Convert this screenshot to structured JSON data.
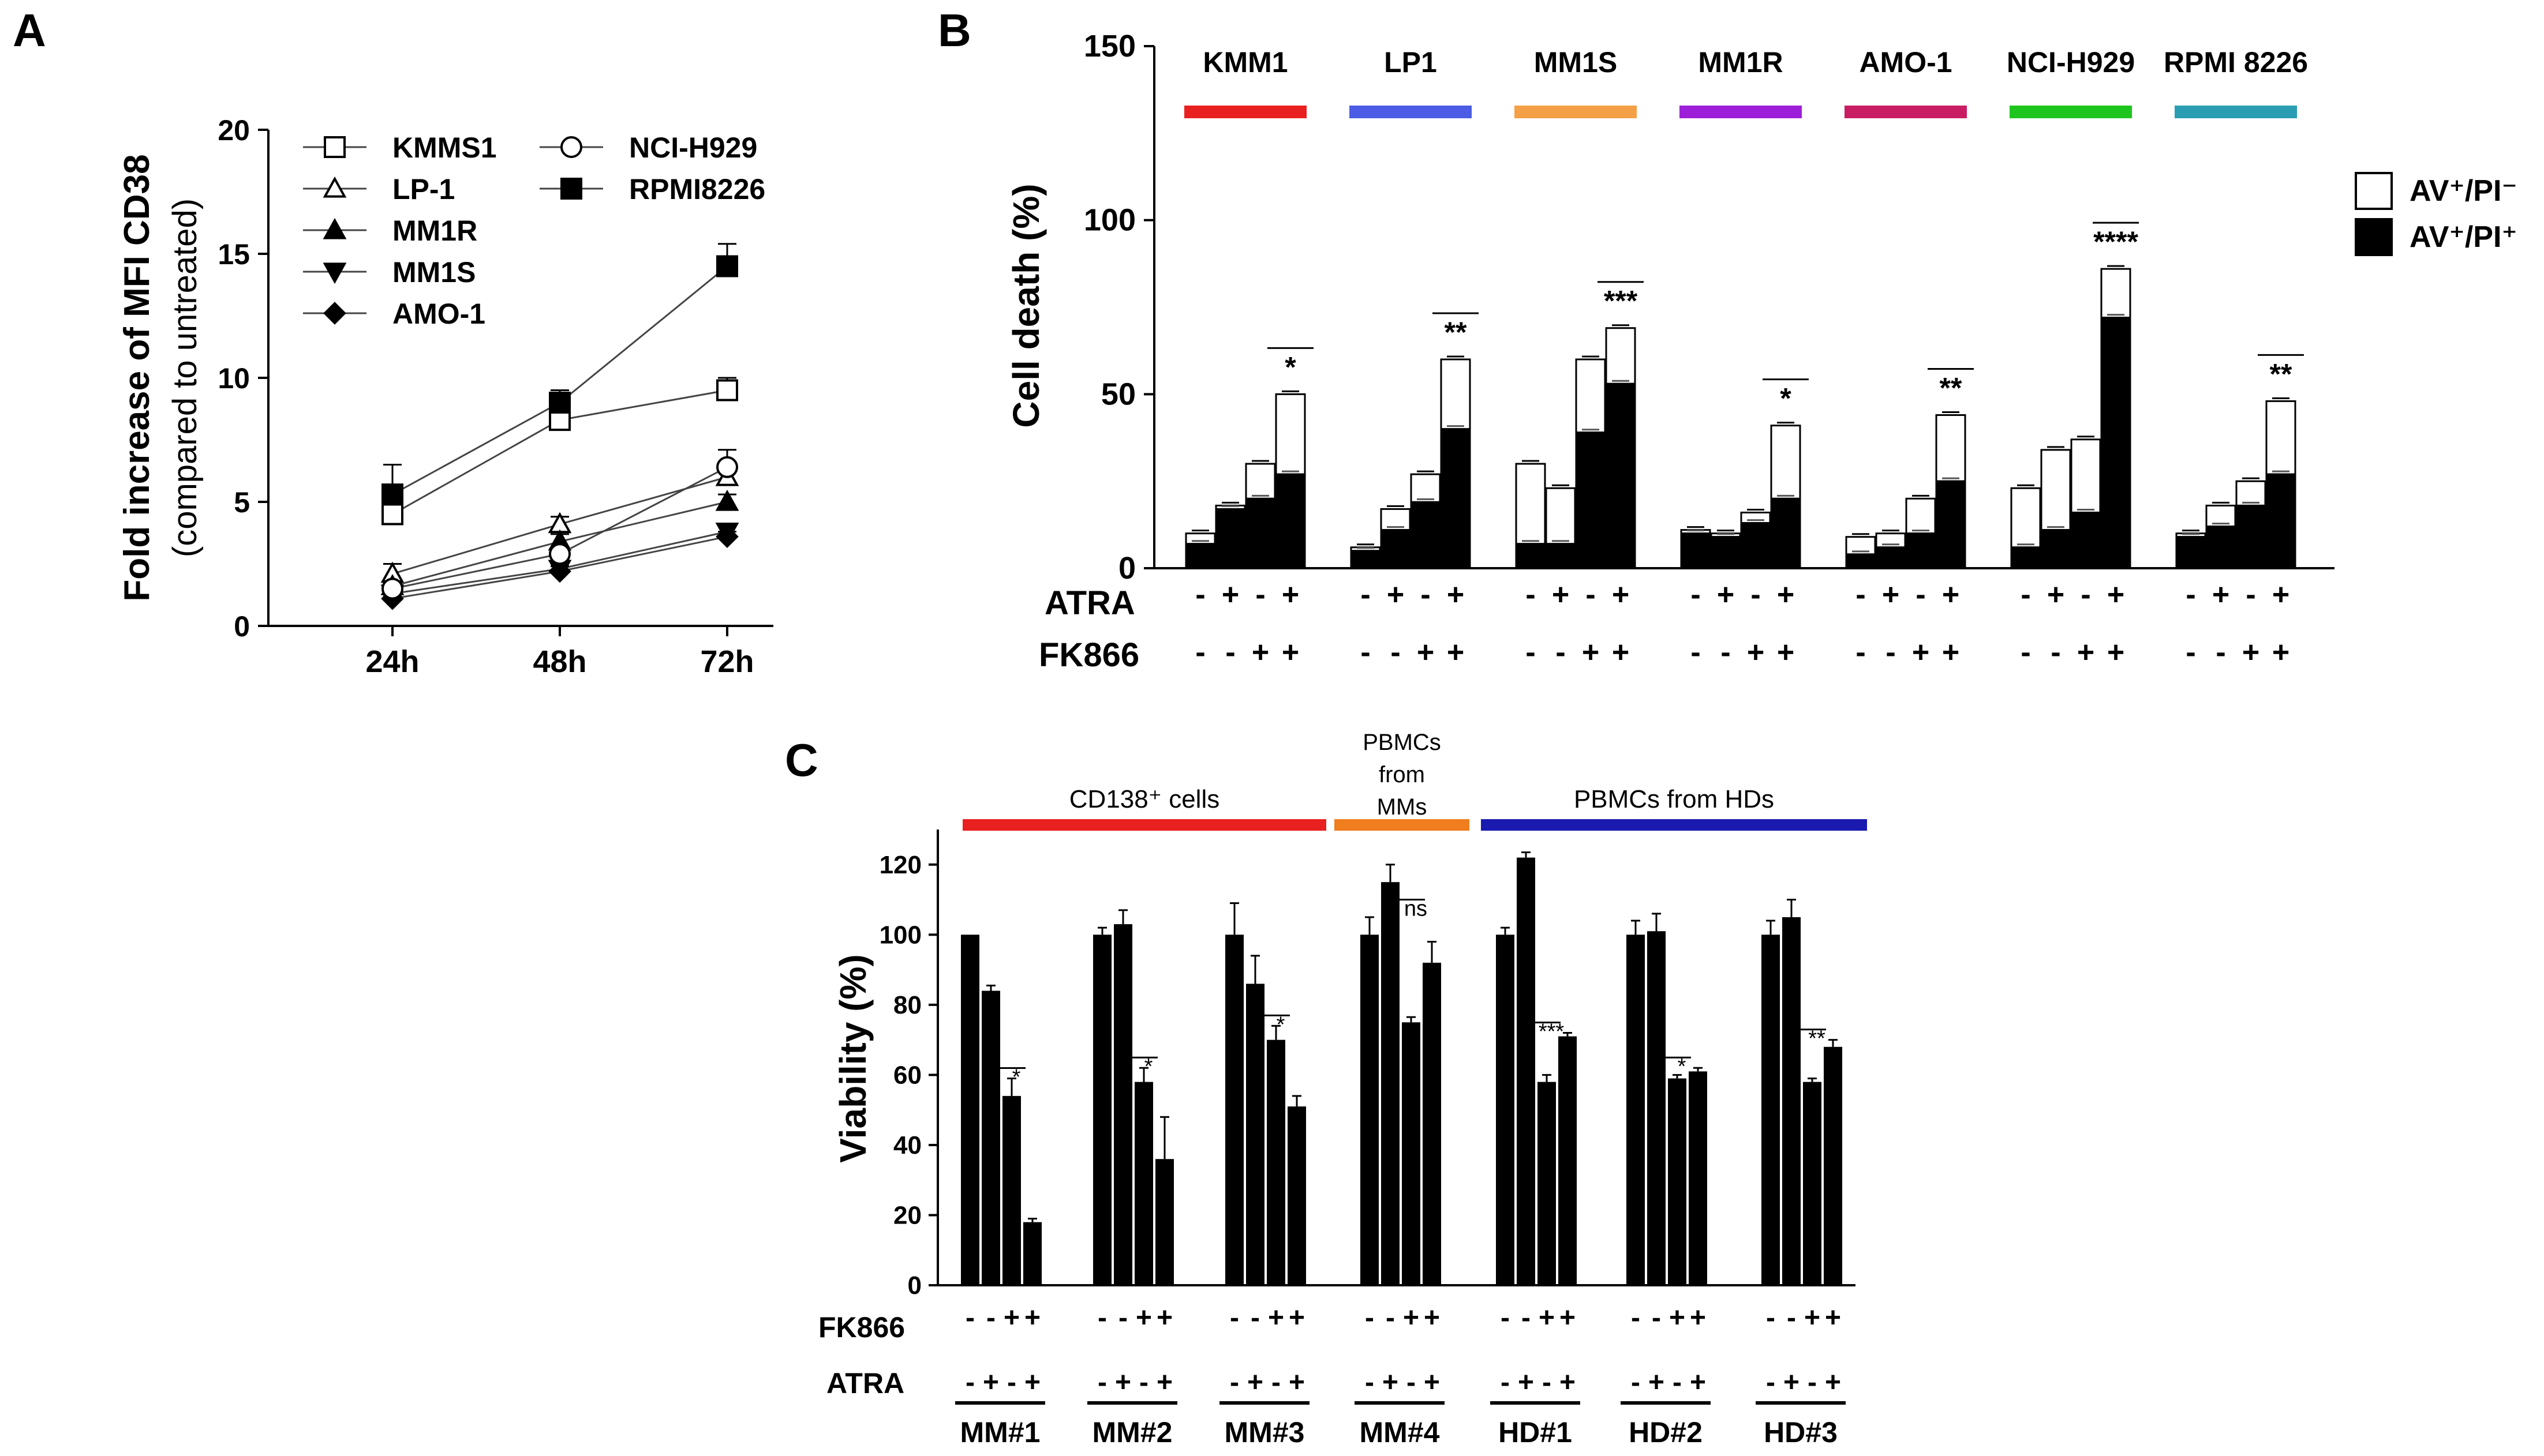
{
  "panels": {
    "a": "A",
    "b": "B",
    "c": "C"
  },
  "chart_data": [
    {
      "id": "A",
      "type": "line",
      "ylabel": "Fold increase of MFI CD38",
      "ylabel2": "(compared to untreated)",
      "xlabel": "",
      "categories": [
        "24h",
        "48h",
        "72h"
      ],
      "ylim": [
        0,
        20
      ],
      "yticks": [
        "0",
        "5",
        "10",
        "15",
        "20"
      ],
      "legend_placement": "top",
      "series": [
        {
          "name": "KMMS1",
          "marker": "square-open",
          "values": [
            4.5,
            8.3,
            9.5
          ],
          "errors": [
            0.5,
            0.4,
            0.5
          ]
        },
        {
          "name": "LP-1",
          "marker": "triangle-open",
          "values": [
            2.1,
            4.1,
            6.0
          ],
          "errors": [
            0.4,
            0.3,
            0.4
          ]
        },
        {
          "name": "MM1R",
          "marker": "triangle-filled",
          "values": [
            1.6,
            3.4,
            5.0
          ],
          "errors": [
            0.2,
            0.3,
            0.3
          ]
        },
        {
          "name": "MM1S",
          "marker": "triangledown-filled",
          "values": [
            1.3,
            2.3,
            3.8
          ],
          "errors": [
            0.2,
            0.2,
            0.2
          ]
        },
        {
          "name": "AMO-1",
          "marker": "diamond-filled",
          "values": [
            1.1,
            2.2,
            3.6
          ],
          "errors": [
            0.1,
            0.2,
            0.2
          ]
        },
        {
          "name": "NCI-H929",
          "marker": "circle-open",
          "values": [
            1.5,
            2.9,
            6.4
          ],
          "errors": [
            0.2,
            0.2,
            0.7
          ]
        },
        {
          "name": "RPMI8226",
          "marker": "square-filled",
          "values": [
            5.3,
            9.0,
            14.5
          ],
          "errors": [
            1.2,
            0.5,
            0.9
          ]
        }
      ]
    },
    {
      "id": "B",
      "type": "bar",
      "stacked": true,
      "ylabel": "Cell death (%)",
      "ylim": [
        0,
        150
      ],
      "yticks": [
        "0",
        "50",
        "100",
        "150"
      ],
      "legend": [
        {
          "label": "AV⁺/PI⁻",
          "fill": "#ffffff"
        },
        {
          "label": "AV⁺/PI⁺",
          "fill": "#000000"
        }
      ],
      "row_labels": {
        "atra": "ATRA",
        "fk866": "FK866"
      },
      "atra_signs": [
        "-",
        "+",
        "-",
        "+"
      ],
      "fk866_signs": [
        "-",
        "-",
        "+",
        "+"
      ],
      "groups": [
        {
          "name": "KMM1",
          "color": "#e8201f",
          "total": [
            10,
            18,
            30,
            50
          ],
          "dead": [
            7,
            17,
            20,
            27
          ],
          "sig": "*"
        },
        {
          "name": "LP1",
          "color": "#4c5ce5",
          "total": [
            6,
            17,
            27,
            60
          ],
          "dead": [
            5,
            11,
            19,
            40
          ],
          "sig": "**"
        },
        {
          "name": "MM1S",
          "color": "#f4a046",
          "total": [
            30,
            23,
            60,
            69
          ],
          "dead": [
            7,
            7,
            39,
            53
          ],
          "sig": "***"
        },
        {
          "name": "MM1R",
          "color": "#9e1fd9",
          "total": [
            11,
            10,
            16,
            41
          ],
          "dead": [
            10,
            9,
            13,
            20
          ],
          "sig": "*"
        },
        {
          "name": "AMO-1",
          "color": "#c81d63",
          "total": [
            9,
            10,
            20,
            44
          ],
          "dead": [
            4,
            6,
            10,
            25
          ],
          "sig": "**"
        },
        {
          "name": "NCI-H929",
          "color": "#1fc51f",
          "total": [
            23,
            34,
            37,
            86
          ],
          "dead": [
            6,
            11,
            16,
            72
          ],
          "sig": "****"
        },
        {
          "name": "RPMI 8226",
          "color": "#2a9db3",
          "total": [
            10,
            18,
            25,
            48
          ],
          "dead": [
            9,
            12,
            18,
            27
          ],
          "sig": "**"
        }
      ]
    },
    {
      "id": "C",
      "type": "bar",
      "ylabel": "Viability (%)",
      "ylim": [
        0,
        130
      ],
      "yticks": [
        "0",
        "20",
        "40",
        "60",
        "80",
        "100",
        "120"
      ],
      "row_labels": {
        "fk866": "FK866",
        "atra": "ATRA"
      },
      "atra_signs": [
        "-",
        "+",
        "-",
        "+"
      ],
      "fk866_signs": [
        "-",
        "-",
        "+",
        "+"
      ],
      "sections": [
        {
          "label": "CD138⁺ cells",
          "color": "#e8201f"
        },
        {
          "label": "PBMCs\nfrom\nMMs",
          "label_lines": [
            "PBMCs",
            "from",
            "MMs"
          ],
          "color": "#f07d1e"
        },
        {
          "label": "PBMCs from HDs",
          "color": "#1a1ab0"
        }
      ],
      "groups": [
        {
          "name": "MM#1",
          "values": [
            100,
            84,
            54,
            18
          ],
          "errors": [
            0,
            1.5,
            5,
            1
          ],
          "sig": "*"
        },
        {
          "name": "MM#2",
          "values": [
            100,
            103,
            58,
            36
          ],
          "errors": [
            2,
            4,
            4,
            12
          ],
          "sig": "*"
        },
        {
          "name": "MM#3",
          "values": [
            100,
            86,
            70,
            51
          ],
          "errors": [
            9,
            8,
            4,
            3
          ],
          "sig": "*"
        },
        {
          "name": "MM#4",
          "values": [
            100,
            115,
            75,
            92
          ],
          "errors": [
            5,
            5,
            1.5,
            6
          ],
          "sig": "ns"
        },
        {
          "name": "HD#1",
          "values": [
            100,
            122,
            58,
            71
          ],
          "errors": [
            2,
            1.5,
            2,
            1
          ],
          "sig": "***"
        },
        {
          "name": "HD#2",
          "values": [
            100,
            101,
            59,
            61
          ],
          "errors": [
            4,
            5,
            1,
            1
          ],
          "sig": "*"
        },
        {
          "name": "HD#3",
          "values": [
            100,
            105,
            58,
            68
          ],
          "errors": [
            4,
            5,
            1,
            2
          ],
          "sig": "**"
        }
      ]
    }
  ]
}
